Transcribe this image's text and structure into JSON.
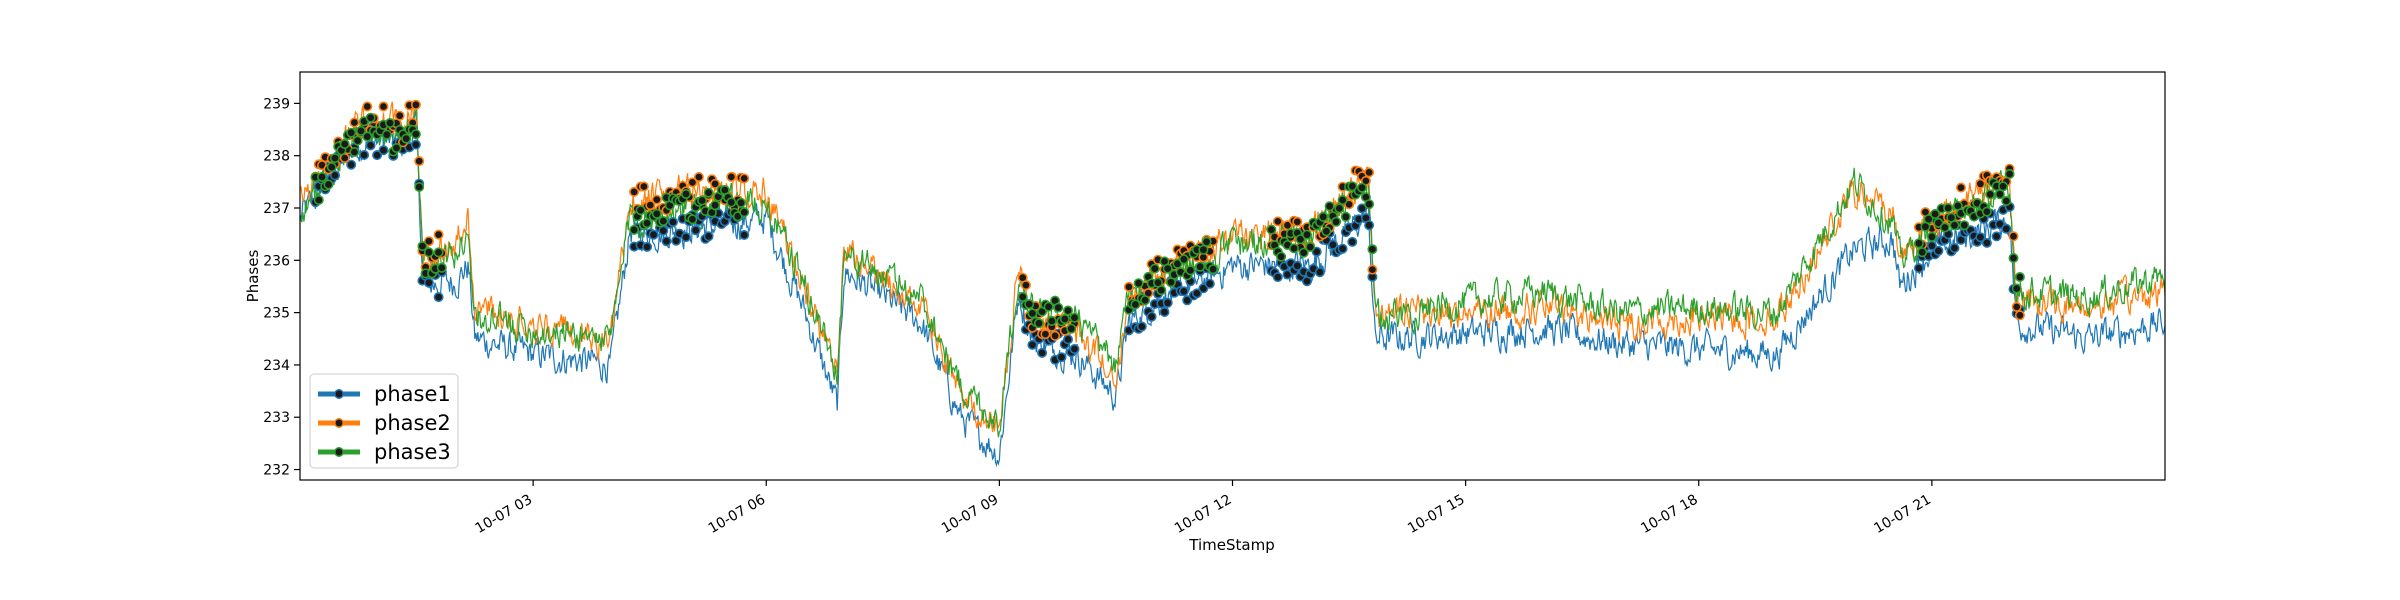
{
  "chart_data": {
    "type": "line",
    "title": "",
    "xlabel": "TimeStamp",
    "ylabel": "Phases",
    "ylim": [
      231.8,
      239.6
    ],
    "xlim": [
      "10-07 00:00",
      "10-08 00:00"
    ],
    "x_ticks": [
      "10-07 03",
      "10-07 06",
      "10-07 09",
      "10-07 12",
      "10-07 15",
      "10-07 18",
      "10-07 21"
    ],
    "y_ticks": [
      232,
      233,
      234,
      235,
      236,
      237,
      238,
      239
    ],
    "grid": false,
    "legend_position": "lower-left",
    "x": [
      "10-07 00:00",
      "10-07 00:15",
      "10-07 00:30",
      "10-07 00:45",
      "10-07 01:00",
      "10-07 01:20",
      "10-07 01:30",
      "10-07 01:35",
      "10-07 02:00",
      "10-07 02:10",
      "10-07 02:15",
      "10-07 03:00",
      "10-07 04:00",
      "10-07 04:15",
      "10-07 04:20",
      "10-07 05:00",
      "10-07 06:00",
      "10-07 06:30",
      "10-07 06:55",
      "10-07 07:00",
      "10-07 08:00",
      "10-07 08:30",
      "10-07 09:00",
      "10-07 09:15",
      "10-07 09:25",
      "10-07 10:00",
      "10-07 10:30",
      "10-07 10:40",
      "10-07 11:00",
      "10-07 12:00",
      "10-07 13:00",
      "10-07 13:45",
      "10-07 13:50",
      "10-07 15:00",
      "10-07 16:00",
      "10-07 17:00",
      "10-07 18:00",
      "10-07 19:00",
      "10-07 20:00",
      "10-07 20:30",
      "10-07 20:35",
      "10-07 21:00",
      "10-07 22:00",
      "10-07 22:05",
      "10-07 23:00",
      "10-07 23:59"
    ],
    "series": [
      {
        "name": "phase1",
        "color": "#1f77b4",
        "values": [
          236.8,
          237.3,
          237.8,
          238.2,
          238.3,
          238.2,
          238.5,
          235.5,
          235.6,
          235.9,
          234.5,
          234.2,
          234.0,
          236.6,
          236.5,
          236.6,
          236.8,
          235.0,
          233.2,
          235.8,
          234.8,
          233.0,
          232.3,
          235.4,
          234.5,
          234.2,
          233.4,
          234.8,
          235.2,
          235.9,
          235.9,
          236.9,
          234.5,
          234.6,
          234.7,
          234.4,
          234.3,
          234.2,
          236.2,
          236.4,
          235.5,
          236.2,
          236.8,
          234.8,
          234.5,
          234.8
        ]
      },
      {
        "name": "phase2",
        "color": "#ff7f0e",
        "values": [
          237.1,
          237.6,
          238.1,
          238.6,
          238.7,
          238.5,
          238.9,
          236.1,
          236.3,
          236.8,
          235.1,
          234.8,
          234.4,
          237.2,
          237.1,
          237.3,
          237.3,
          235.5,
          233.7,
          236.2,
          235.1,
          233.4,
          232.8,
          235.9,
          234.9,
          234.6,
          233.8,
          235.2,
          235.7,
          236.5,
          236.5,
          237.7,
          235.0,
          235.0,
          235.1,
          234.8,
          234.9,
          234.9,
          237.3,
          236.9,
          236.1,
          236.8,
          237.6,
          235.2,
          235.1,
          235.4
        ]
      },
      {
        "name": "phase3",
        "color": "#2ca02c",
        "values": [
          236.9,
          237.4,
          237.9,
          238.4,
          238.5,
          238.3,
          238.7,
          235.9,
          236.1,
          236.6,
          234.9,
          234.7,
          234.5,
          236.9,
          236.8,
          237.0,
          237.1,
          235.5,
          233.9,
          236.1,
          235.3,
          233.6,
          232.9,
          235.8,
          235.1,
          234.8,
          234.0,
          235.3,
          235.6,
          236.3,
          236.4,
          237.5,
          234.9,
          235.2,
          235.4,
          235.0,
          235.1,
          235.0,
          237.5,
          236.7,
          236.0,
          236.6,
          237.4,
          235.4,
          235.3,
          235.7
        ]
      }
    ]
  }
}
